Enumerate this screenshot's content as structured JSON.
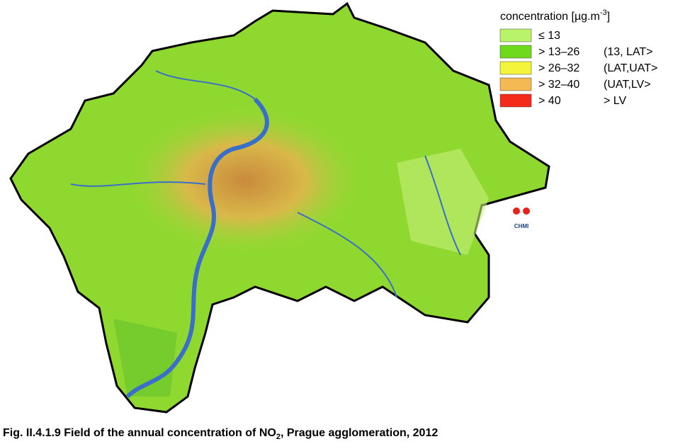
{
  "legend": {
    "title": "concentration [µg.m",
    "title_sup": "-3",
    "title_end": "]",
    "items": [
      {
        "color": "#b9f36a",
        "range": "≤ 13"
      },
      {
        "color": "#6fd91c",
        "range": "> 13–26",
        "class": "(13, LAT>"
      },
      {
        "color": "#f2f53a",
        "range": "> 26–32",
        "class": "(LAT,UAT>"
      },
      {
        "color": "#f5b954",
        "range": "> 32–40",
        "class": "(UAT,LV>"
      },
      {
        "color": "#f42a1a",
        "range": "> 40",
        "class": "> LV"
      }
    ]
  },
  "logo": {
    "text": "CHMI"
  },
  "caption": {
    "text": "Fig. II.4.1.9  Field of the annual concentration of NO",
    "sub": "2",
    "end": ", Prague agglomeration, 2012"
  }
}
